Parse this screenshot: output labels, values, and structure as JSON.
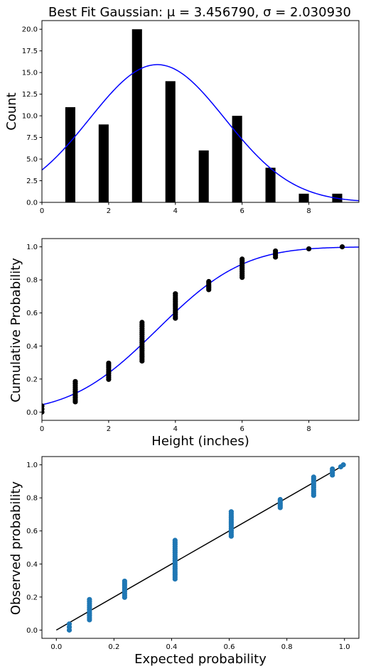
{
  "chart_data": [
    {
      "type": "bar",
      "title": "Best Fit Gaussian: μ = 3.456790, σ = 2.030930",
      "xlabel": "",
      "ylabel": "Count",
      "xlim": [
        0,
        9.5
      ],
      "ylim": [
        0,
        21
      ],
      "xticks": [
        0,
        2,
        4,
        6,
        8
      ],
      "yticks": [
        0.0,
        2.5,
        5.0,
        7.5,
        10.0,
        12.5,
        15.0,
        17.5,
        20.0
      ],
      "xtick_labels": [
        "0",
        "2",
        "4",
        "6",
        "8"
      ],
      "ytick_labels": [
        "0.0",
        "2.5",
        "5.0",
        "7.5",
        "10.0",
        "12.5",
        "15.0",
        "17.5",
        "20.0"
      ],
      "bar_width": 0.3,
      "bars": [
        {
          "x": 0.85,
          "value": 11
        },
        {
          "x": 1.85,
          "value": 9
        },
        {
          "x": 2.85,
          "value": 20
        },
        {
          "x": 3.85,
          "value": 14
        },
        {
          "x": 4.85,
          "value": 6
        },
        {
          "x": 5.85,
          "value": 10
        },
        {
          "x": 6.85,
          "value": 4
        },
        {
          "x": 7.85,
          "value": 1
        },
        {
          "x": 8.85,
          "value": 1
        }
      ],
      "bar_color": "#000000",
      "curve": {
        "kind": "gaussian_pdf_scaled",
        "mu": 3.45679,
        "sigma": 2.03093,
        "scale": 81,
        "color": "#0000ff"
      }
    },
    {
      "type": "scatter",
      "title": "",
      "xlabel": "Height (inches)",
      "ylabel": "Cumulative Probability",
      "xlim": [
        0,
        9.5
      ],
      "ylim": [
        -0.05,
        1.05
      ],
      "xticks": [
        0,
        2,
        4,
        6,
        8
      ],
      "yticks": [
        0.0,
        0.2,
        0.4,
        0.6,
        0.8,
        1.0
      ],
      "xtick_labels": [
        "0",
        "2",
        "4",
        "6",
        "8"
      ],
      "ytick_labels": [
        "0.0",
        "0.2",
        "0.4",
        "0.6",
        "0.8",
        "1.0"
      ],
      "point_color": "#000000",
      "groups": [
        {
          "x": 0,
          "y_from": 0.0,
          "y_to": 0.037,
          "n": 3
        },
        {
          "x": 1,
          "y_from": 0.062,
          "y_to": 0.185,
          "n": 11
        },
        {
          "x": 2,
          "y_from": 0.198,
          "y_to": 0.296,
          "n": 9
        },
        {
          "x": 3,
          "y_from": 0.309,
          "y_to": 0.543,
          "n": 20
        },
        {
          "x": 4,
          "y_from": 0.568,
          "y_to": 0.716,
          "n": 14
        },
        {
          "x": 5,
          "y_from": 0.741,
          "y_to": 0.79,
          "n": 6
        },
        {
          "x": 6,
          "y_from": 0.815,
          "y_to": 0.926,
          "n": 10
        },
        {
          "x": 7,
          "y_from": 0.938,
          "y_to": 0.975,
          "n": 4
        },
        {
          "x": 8,
          "y_from": 0.988,
          "y_to": 0.988,
          "n": 1
        },
        {
          "x": 9,
          "y_from": 1.0,
          "y_to": 1.0,
          "n": 1
        }
      ],
      "curve": {
        "kind": "gaussian_cdf",
        "mu": 3.45679,
        "sigma": 2.03093,
        "color": "#0000ff"
      }
    },
    {
      "type": "scatter",
      "title": "",
      "xlabel": "Expected probability",
      "ylabel": "Observed probability",
      "xlim": [
        -0.05,
        1.05
      ],
      "ylim": [
        -0.05,
        1.05
      ],
      "xticks": [
        0.0,
        0.2,
        0.4,
        0.6,
        0.8,
        1.0
      ],
      "yticks": [
        0.0,
        0.2,
        0.4,
        0.6,
        0.8,
        1.0
      ],
      "xtick_labels": [
        "0.0",
        "0.2",
        "0.4",
        "0.6",
        "0.8",
        "1.0"
      ],
      "ytick_labels": [
        "0.0",
        "0.2",
        "0.4",
        "0.6",
        "0.8",
        "1.0"
      ],
      "point_color": "#1f77b4",
      "groups": [
        {
          "x": 0.045,
          "y_from": 0.0,
          "y_to": 0.037,
          "n": 3
        },
        {
          "x": 0.115,
          "y_from": 0.062,
          "y_to": 0.185,
          "n": 11
        },
        {
          "x": 0.237,
          "y_from": 0.198,
          "y_to": 0.296,
          "n": 9
        },
        {
          "x": 0.412,
          "y_from": 0.309,
          "y_to": 0.543,
          "n": 20
        },
        {
          "x": 0.607,
          "y_from": 0.568,
          "y_to": 0.716,
          "n": 14
        },
        {
          "x": 0.777,
          "y_from": 0.741,
          "y_to": 0.79,
          "n": 6
        },
        {
          "x": 0.893,
          "y_from": 0.815,
          "y_to": 0.926,
          "n": 10
        },
        {
          "x": 0.958,
          "y_from": 0.938,
          "y_to": 0.975,
          "n": 4
        },
        {
          "x": 0.987,
          "y_from": 0.988,
          "y_to": 0.988,
          "n": 1
        },
        {
          "x": 0.996,
          "y_from": 1.0,
          "y_to": 1.0,
          "n": 1
        }
      ],
      "reference_line": {
        "from": [
          0,
          0
        ],
        "to": [
          1,
          1
        ],
        "color": "#000000"
      }
    }
  ]
}
